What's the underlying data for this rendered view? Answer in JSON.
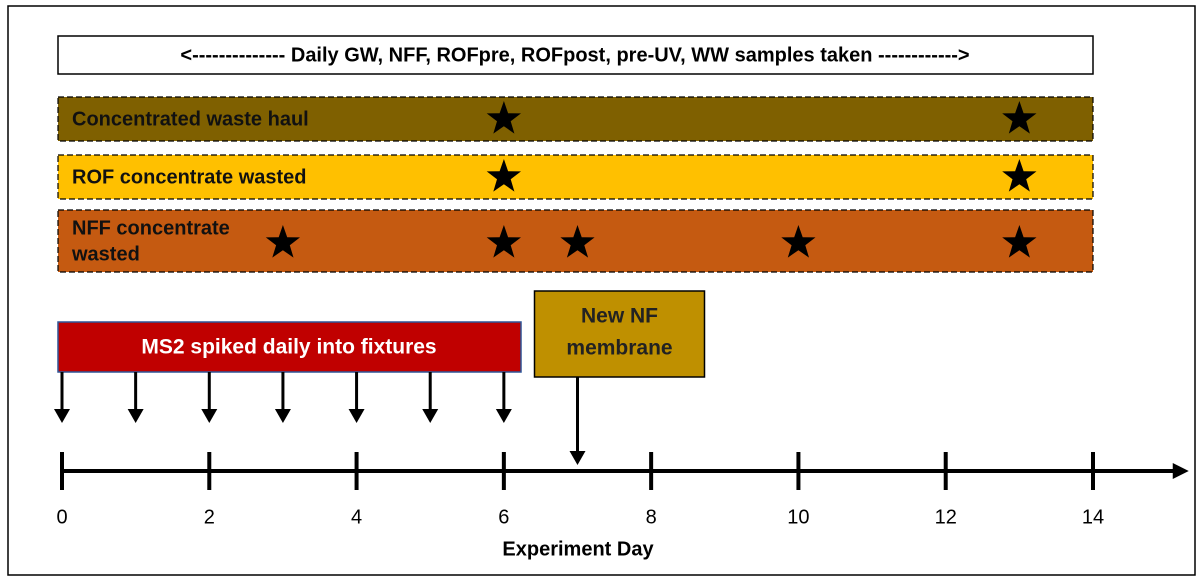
{
  "timeline": {
    "banner": "<-------------- Daily GW, NFF, ROFpre, ROFpost, pre-UV, WW samples taken ------------>",
    "rows": [
      {
        "label_lines": [
          "Concentrated  waste haul"
        ],
        "color": "#7f6000",
        "star_days": [
          6,
          13
        ]
      },
      {
        "label_lines": [
          "ROF concentrate wasted"
        ],
        "color": "#ffc000",
        "star_days": [
          6,
          13
        ]
      },
      {
        "label_lines": [
          "NFF concentrate",
          "wasted"
        ],
        "color": "#c55a11",
        "star_days": [
          3,
          6,
          7,
          10,
          13
        ]
      }
    ],
    "spike_box": {
      "label": "MS2 spiked daily into fixtures",
      "color": "#c00000",
      "days": [
        0,
        1,
        2,
        3,
        4,
        5,
        6
      ]
    },
    "membrane_box": {
      "label_lines": [
        "New NF",
        "membrane"
      ],
      "color": "#bf9000",
      "day": 7
    },
    "xlim": [
      0,
      15.3
    ],
    "xticks": [
      0,
      2,
      4,
      6,
      8,
      10,
      12,
      14
    ],
    "xlabel": "Experiment Day"
  }
}
